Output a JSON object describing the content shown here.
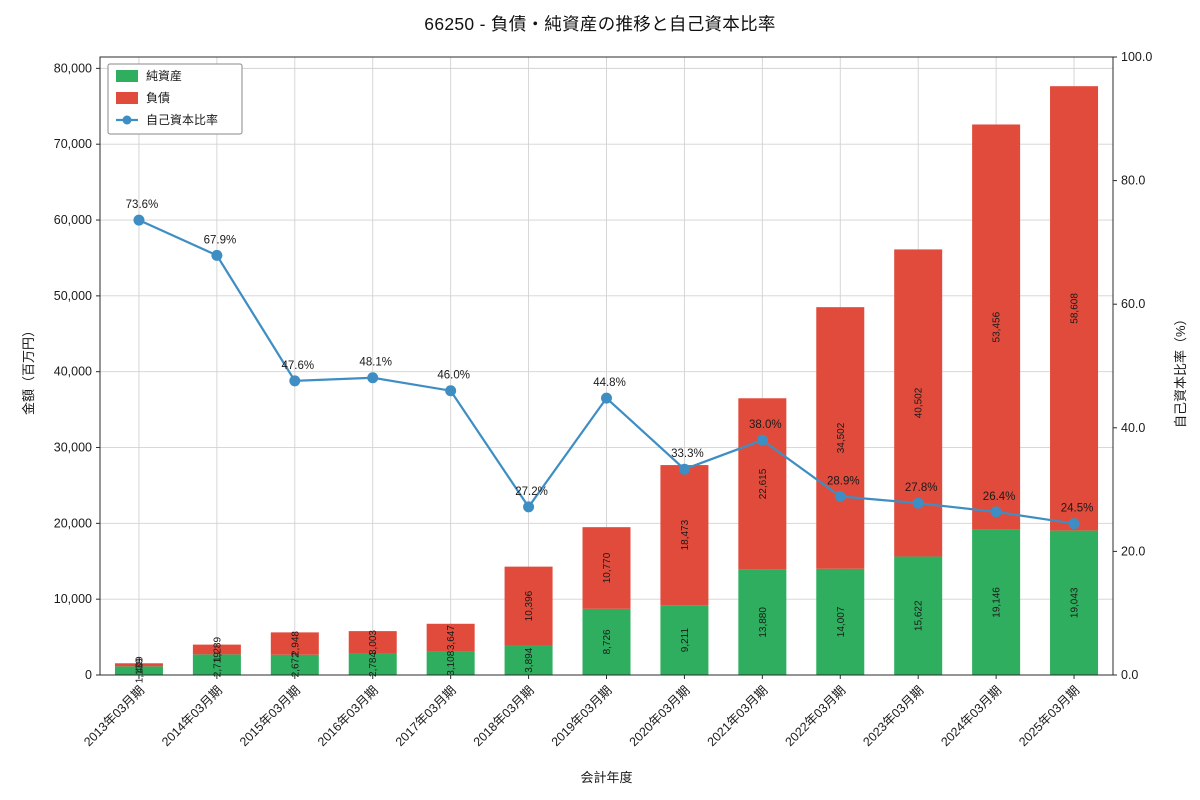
{
  "chart_data": {
    "type": "bar",
    "stacked": true,
    "title": "66250 - 負債・純資産の推移と自己資本比率",
    "xlabel": "会計年度",
    "ylabel_left": "金額（百万円）",
    "ylabel_right": "自己資本比率（%）",
    "categories": [
      "2013年03月期",
      "2014年03月期",
      "2015年03月期",
      "2016年03月期",
      "2017年03月期",
      "2018年03月期",
      "2019年03月期",
      "2020年03月期",
      "2021年03月期",
      "2022年03月期",
      "2023年03月期",
      "2024年03月期",
      "2025年03月期"
    ],
    "series": [
      {
        "name": "純資産",
        "kind": "bar",
        "color": "#2eae5e",
        "values": [
          1139,
          2719,
          2672,
          2784,
          3108,
          3894,
          8726,
          9211,
          13880,
          14007,
          15622,
          19146,
          19043
        ]
      },
      {
        "name": "負債",
        "kind": "bar",
        "color": "#e14b3c",
        "values": [
          409,
          1289,
          2948,
          3003,
          3647,
          10396,
          10770,
          18473,
          22615,
          34502,
          40502,
          53456,
          58608
        ]
      },
      {
        "name": "自己資本比率",
        "kind": "line",
        "axis": "right",
        "unit": "%",
        "color": "#3e8ec4",
        "values": [
          73.6,
          67.9,
          47.6,
          48.1,
          46.0,
          27.2,
          44.8,
          33.3,
          38.0,
          28.9,
          27.8,
          26.4,
          24.5
        ]
      }
    ],
    "y_left_ticks": [
      0,
      10000,
      20000,
      30000,
      40000,
      50000,
      60000,
      70000,
      80000
    ],
    "y_right_ticks": [
      0,
      20,
      40,
      60,
      80,
      100
    ],
    "ylim_left": [
      0,
      81500
    ],
    "ylim_right": [
      0,
      100
    ],
    "grid": true,
    "legend_position": "upper-left"
  }
}
